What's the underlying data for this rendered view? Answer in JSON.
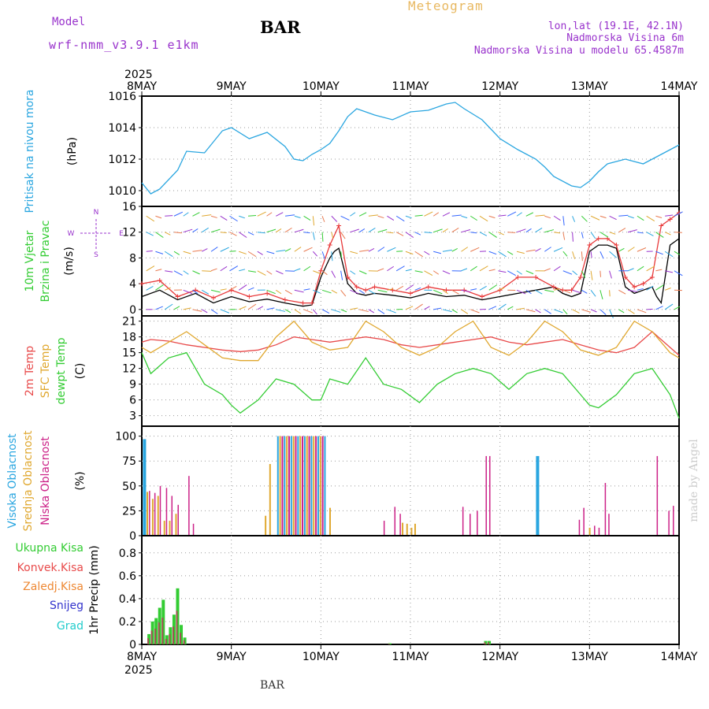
{
  "header": {
    "model_label": "Model",
    "model_name": "wrf-nmm_v3.9.1 e1km",
    "station": "BAR",
    "meteogram": "Meteogram",
    "lonlat": "lon,lat (19.1E, 42.1N)",
    "elev": "Nadmorska Visina 6m",
    "elev_model": "Nadmorska Visina u modelu 65.4587m",
    "footer_station": "BAR",
    "watermark": "made by Angel"
  },
  "colors": {
    "pressure": "#2aa6e0",
    "wind_speed": "#000000",
    "gust": "#e8393a",
    "t2m": "#e84a4a",
    "sfc": "#e0a830",
    "dew": "#33cc33",
    "cloud_high": "#2aa6e0",
    "cloud_mid": "#e0a830",
    "cloud_low": "#cc2288",
    "precip_total": "#33cc33",
    "precip_conv": "#a05050",
    "purple": "#9933cc",
    "meteo": "#e8b860"
  },
  "chart_data": {
    "type": "line",
    "x_ticks": [
      "8MAY",
      "9MAY",
      "10MAY",
      "11MAY",
      "12MAY",
      "13MAY",
      "14MAY"
    ],
    "year": "2025",
    "panels": [
      {
        "id": "pressure",
        "ylabel": [
          "Pritisak na nivou mora",
          "(hPa)"
        ],
        "ylim": [
          1009,
          1016
        ],
        "yticks": [
          1010,
          1012,
          1014,
          1016
        ],
        "series": [
          {
            "name": "pressure",
            "x": [
              0,
              0.1,
              0.2,
              0.4,
              0.5,
              0.7,
              0.9,
              1.0,
              1.2,
              1.4,
              1.6,
              1.7,
              1.8,
              1.9,
              2.0,
              2.1,
              2.2,
              2.3,
              2.4,
              2.5,
              2.6,
              2.8,
              3.0,
              3.2,
              3.4,
              3.5,
              3.6,
              3.8,
              4.0,
              4.2,
              4.4,
              4.5,
              4.6,
              4.8,
              4.9,
              5.0,
              5.1,
              5.2,
              5.4,
              5.6,
              5.8,
              6.0
            ],
            "y": [
              1010.5,
              1009.8,
              1010.1,
              1011.3,
              1012.5,
              1012.4,
              1013.8,
              1014.0,
              1013.3,
              1013.7,
              1012.8,
              1012.0,
              1011.9,
              1012.3,
              1012.6,
              1013.0,
              1013.8,
              1014.7,
              1015.2,
              1015.0,
              1014.8,
              1014.5,
              1015.0,
              1015.1,
              1015.5,
              1015.6,
              1015.2,
              1014.5,
              1013.3,
              1012.6,
              1012.0,
              1011.5,
              1010.9,
              1010.3,
              1010.2,
              1010.6,
              1011.2,
              1011.7,
              1012.0,
              1011.7,
              1012.3,
              1012.9
            ]
          }
        ]
      },
      {
        "id": "wind",
        "ylabel": [
          "10m Vjetar",
          "Brzina i Pravac",
          "(m/s)"
        ],
        "ylim": [
          -1,
          16
        ],
        "yticks": [
          0,
          4,
          8,
          12,
          16
        ],
        "series": [
          {
            "name": "speed",
            "x": [
              0,
              0.2,
              0.4,
              0.6,
              0.8,
              1.0,
              1.2,
              1.4,
              1.6,
              1.8,
              1.9,
              2.0,
              2.1,
              2.15,
              2.2,
              2.3,
              2.4,
              2.5,
              2.6,
              2.8,
              3.0,
              3.2,
              3.4,
              3.6,
              3.8,
              4.0,
              4.2,
              4.4,
              4.6,
              4.7,
              4.8,
              4.9,
              5.0,
              5.1,
              5.2,
              5.3,
              5.4,
              5.5,
              5.6,
              5.7,
              5.75,
              5.8,
              5.9,
              6.0
            ],
            "y": [
              2,
              3,
              1.5,
              2.5,
              1,
              2,
              1.2,
              1.6,
              1,
              0.5,
              0.7,
              5,
              8,
              9,
              9.5,
              4,
              2.5,
              2.2,
              2.5,
              2.2,
              1.8,
              2.5,
              2,
              2.2,
              1.5,
              2,
              2.5,
              3,
              3.5,
              2.5,
              2,
              2.5,
              9,
              10,
              10,
              9.5,
              3.5,
              2.5,
              3,
              3.5,
              2,
              1,
              10,
              11
            ]
          },
          {
            "name": "gust",
            "x": [
              0,
              0.2,
              0.4,
              0.6,
              0.8,
              1.0,
              1.2,
              1.4,
              1.6,
              1.8,
              1.9,
              2.0,
              2.1,
              2.2,
              2.3,
              2.4,
              2.5,
              2.6,
              2.8,
              3.0,
              3.2,
              3.4,
              3.6,
              3.8,
              4.0,
              4.2,
              4.4,
              4.6,
              4.7,
              4.8,
              4.9,
              5.0,
              5.1,
              5.2,
              5.3,
              5.4,
              5.5,
              5.6,
              5.7,
              5.8,
              5.9,
              6.0
            ],
            "y": [
              4,
              4.5,
              2,
              3,
              1.8,
              3,
              2,
              2.5,
              1.5,
              1,
              1,
              6,
              10,
              13,
              5,
              3.5,
              3,
              3.5,
              3,
              2.5,
              3.5,
              3,
              3,
              2,
              3,
              5,
              5,
              3.5,
              3,
              3,
              5,
              10,
              11,
              11,
              10,
              5,
              3.5,
              4,
              5,
              13,
              14,
              15
            ]
          }
        ],
        "direction_legend": [
          "N",
          "W",
          "E",
          "S"
        ]
      },
      {
        "id": "temp",
        "ylabel": [
          "2m Temp",
          "SFC Temp",
          "dewpt Temp",
          "(C)"
        ],
        "ylim": [
          1,
          22
        ],
        "yticks": [
          3,
          6,
          9,
          12,
          15,
          18,
          21
        ],
        "series": [
          {
            "name": "t2m",
            "x": [
              0,
              0.1,
              0.3,
              0.5,
              0.7,
              0.9,
              1.1,
              1.3,
              1.5,
              1.7,
              1.9,
              2.1,
              2.3,
              2.5,
              2.7,
              2.9,
              3.1,
              3.3,
              3.5,
              3.7,
              3.9,
              4.1,
              4.3,
              4.5,
              4.7,
              4.9,
              5.1,
              5.3,
              5.5,
              5.7,
              5.9,
              6.0
            ],
            "y": [
              17,
              17.5,
              17.2,
              16.5,
              16,
              15.5,
              15.2,
              15.5,
              16.5,
              18,
              17.5,
              17,
              17.5,
              18,
              17.5,
              16.5,
              16,
              16.5,
              17,
              17.5,
              18,
              17,
              16.5,
              17,
              17.5,
              16.5,
              15.5,
              15,
              16,
              19,
              16,
              14.5
            ]
          },
          {
            "name": "sfc",
            "x": [
              0,
              0.1,
              0.3,
              0.5,
              0.7,
              0.9,
              1.1,
              1.3,
              1.5,
              1.7,
              1.9,
              2.1,
              2.3,
              2.5,
              2.7,
              2.9,
              3.1,
              3.3,
              3.5,
              3.7,
              3.9,
              4.1,
              4.3,
              4.5,
              4.7,
              4.9,
              5.1,
              5.3,
              5.5,
              5.7,
              5.9,
              6.0
            ],
            "y": [
              16,
              15,
              17,
              19,
              16.5,
              14,
              13.5,
              13.5,
              18,
              21,
              17,
              15.5,
              16,
              21,
              19,
              16,
              14.5,
              16,
              19,
              21,
              16,
              14.5,
              17,
              21,
              19,
              15.5,
              14.5,
              16,
              21,
              19,
              15,
              14
            ]
          },
          {
            "name": "dew",
            "x": [
              0,
              0.1,
              0.3,
              0.5,
              0.7,
              0.9,
              1.0,
              1.1,
              1.3,
              1.5,
              1.7,
              1.9,
              2.0,
              2.1,
              2.3,
              2.5,
              2.7,
              2.9,
              3.1,
              3.3,
              3.5,
              3.7,
              3.9,
              4.1,
              4.3,
              4.5,
              4.7,
              4.9,
              5.0,
              5.1,
              5.3,
              5.5,
              5.7,
              5.9,
              6.0
            ],
            "y": [
              15,
              11,
              14,
              15,
              9,
              7,
              5,
              3.5,
              6,
              10,
              9,
              6,
              6,
              10,
              9,
              14,
              9,
              8,
              5.5,
              9,
              11,
              12,
              11,
              8,
              11,
              12,
              11,
              7,
              5,
              4.5,
              7,
              11,
              12,
              7,
              2.5
            ]
          }
        ]
      },
      {
        "id": "cloud",
        "ylabel": [
          "Visoka Oblacnost",
          "Srednja Oblacnost",
          "Niska Oblacnost",
          "(%)"
        ],
        "ylim": [
          0,
          110
        ],
        "yticks": [
          0,
          25,
          50,
          75,
          100
        ],
        "bars": [
          {
            "x": 0.03,
            "h": 97,
            "c": "high"
          },
          {
            "x": 0.08,
            "l": 45,
            "m": 44
          },
          {
            "x": 0.14,
            "l": 43,
            "m": 37
          },
          {
            "x": 0.2,
            "l": 50,
            "m": 40
          },
          {
            "x": 0.27,
            "l": 48,
            "m": 15
          },
          {
            "x": 0.33,
            "l": 40,
            "m": 15
          },
          {
            "x": 0.4,
            "l": 31,
            "m": 22
          },
          {
            "x": 0.52,
            "l": 60
          },
          {
            "x": 0.57,
            "l": 12
          },
          {
            "x": 1.4,
            "m": 20
          },
          {
            "x": 1.45,
            "m": 72
          },
          {
            "x": 2.12,
            "m": 28
          },
          {
            "x": 2.7,
            "l": 15
          },
          {
            "x": 2.82,
            "l": 29
          },
          {
            "x": 2.88,
            "l": 22
          },
          {
            "x": 2.93,
            "m": 13
          },
          {
            "x": 2.98,
            "m": 12
          },
          {
            "x": 3.03,
            "m": 8
          },
          {
            "x": 3.07,
            "m": 12
          },
          {
            "x": 3.58,
            "l": 29
          },
          {
            "x": 3.66,
            "l": 22
          },
          {
            "x": 3.74,
            "l": 25
          },
          {
            "x": 3.84,
            "l": 80
          },
          {
            "x": 3.88,
            "l": 80
          },
          {
            "x": 4.42,
            "h": 80,
            "c": "high"
          },
          {
            "x": 4.88,
            "l": 16
          },
          {
            "x": 4.93,
            "l": 28
          },
          {
            "x": 5.02,
            "m": 8
          },
          {
            "x": 5.05,
            "l": 10
          },
          {
            "x": 5.1,
            "l": 8
          },
          {
            "x": 5.17,
            "l": 53
          },
          {
            "x": 5.21,
            "l": 22
          },
          {
            "x": 5.75,
            "l": 80
          },
          {
            "x": 5.88,
            "l": 25
          },
          {
            "x": 5.93,
            "l": 30
          }
        ],
        "full_cover": {
          "from": 1.52,
          "to": 2.05,
          "value": 100
        }
      },
      {
        "id": "precip",
        "ylabel": [
          "1hr Precip (mm)"
        ],
        "legend": [
          "Ukupna Kisa",
          "Konvek.Kisa",
          "Zaledj.Kisa",
          "Snijeg",
          "Grad"
        ],
        "ylim": [
          0,
          0.95
        ],
        "yticks": [
          0,
          0.2,
          0.4,
          0.6,
          0.8
        ],
        "bars": [
          {
            "x": 0.08,
            "v": 0.09
          },
          {
            "x": 0.12,
            "v": 0.2
          },
          {
            "x": 0.16,
            "v": 0.23
          },
          {
            "x": 0.2,
            "v": 0.32
          },
          {
            "x": 0.24,
            "v": 0.39
          },
          {
            "x": 0.28,
            "v": 0.08
          },
          {
            "x": 0.32,
            "v": 0.15
          },
          {
            "x": 0.36,
            "v": 0.26
          },
          {
            "x": 0.4,
            "v": 0.49
          },
          {
            "x": 0.44,
            "v": 0.17
          },
          {
            "x": 0.48,
            "v": 0.06
          },
          {
            "x": 2.77,
            "v": 0.01
          },
          {
            "x": 3.84,
            "v": 0.03
          },
          {
            "x": 3.88,
            "v": 0.03
          }
        ]
      }
    ]
  }
}
